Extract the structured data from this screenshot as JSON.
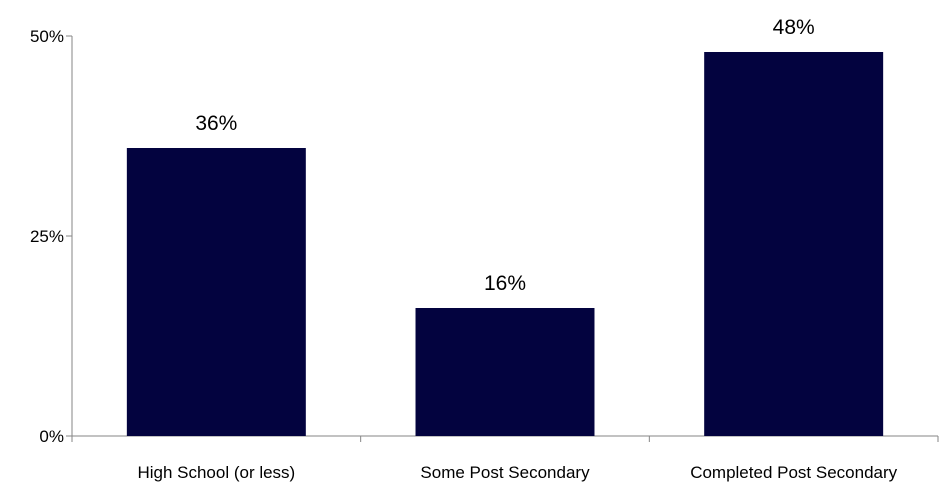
{
  "chart_data": {
    "type": "bar",
    "categories": [
      "High School (or less)",
      "Some Post Secondary",
      "Completed Post Secondary"
    ],
    "values": [
      36,
      16,
      48
    ],
    "data_labels": [
      "36%",
      "16%",
      "48%"
    ],
    "ylim": [
      0,
      50
    ],
    "yticks": [
      0,
      25,
      50
    ],
    "ytick_labels": [
      "0%",
      "25%",
      "50%"
    ],
    "grid": false,
    "legend": "none",
    "bar_color": "#03033f"
  }
}
